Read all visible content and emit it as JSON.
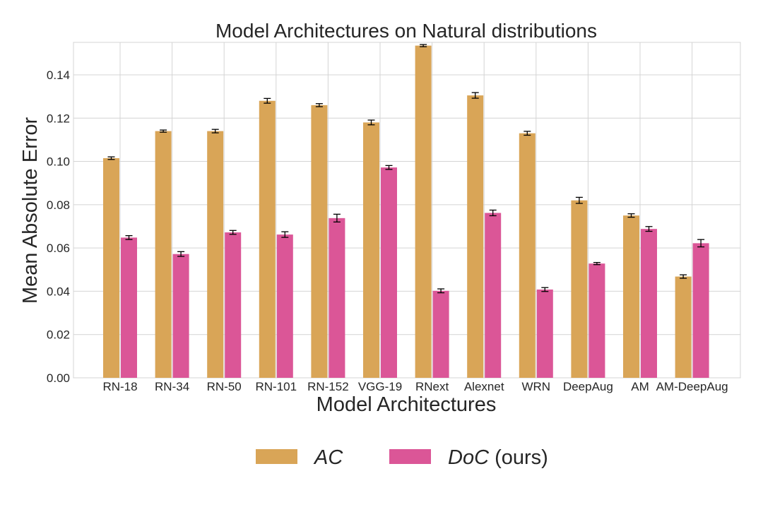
{
  "chart_data": {
    "type": "bar",
    "title": "Model Architectures on Natural distributions",
    "xlabel": "Model Architectures",
    "ylabel": "Mean Absolute Error",
    "ylim": [
      0,
      0.155
    ],
    "yticks": [
      "0.00",
      "0.02",
      "0.04",
      "0.06",
      "0.08",
      "0.10",
      "0.12",
      "0.14"
    ],
    "ytick_values": [
      0,
      0.02,
      0.04,
      0.06,
      0.08,
      0.1,
      0.12,
      0.14
    ],
    "grid": true,
    "legend_position": "bottom-center",
    "categories": [
      "RN-18",
      "RN-34",
      "RN-50",
      "RN-101",
      "RN-152",
      "VGG-19",
      "RNext",
      "Alexnet",
      "WRN",
      "DeepAug",
      "AM",
      "AM-DeepAug"
    ],
    "series": [
      {
        "name": "AC",
        "legend_main": "AC",
        "legend_suffix": "",
        "color": "#d9a557",
        "values": [
          0.1015,
          0.114,
          0.114,
          0.128,
          0.126,
          0.118,
          0.1535,
          0.1305,
          0.113,
          0.082,
          0.075,
          0.0468
        ],
        "errors": [
          0.0006,
          0.0005,
          0.0008,
          0.0011,
          0.0007,
          0.0011,
          0.0005,
          0.0013,
          0.0009,
          0.0014,
          0.0008,
          0.0008
        ]
      },
      {
        "name": "DoC (ours)",
        "legend_main": "DoC",
        "legend_suffix": " (ours)",
        "color": "#db5697",
        "values": [
          0.0648,
          0.0572,
          0.0672,
          0.0662,
          0.0738,
          0.0972,
          0.0402,
          0.0762,
          0.0408,
          0.0528,
          0.0688,
          0.0622
        ],
        "errors": [
          0.0009,
          0.0011,
          0.0009,
          0.0013,
          0.0018,
          0.0009,
          0.0009,
          0.0013,
          0.0009,
          0.0005,
          0.0011,
          0.0017
        ]
      }
    ]
  }
}
